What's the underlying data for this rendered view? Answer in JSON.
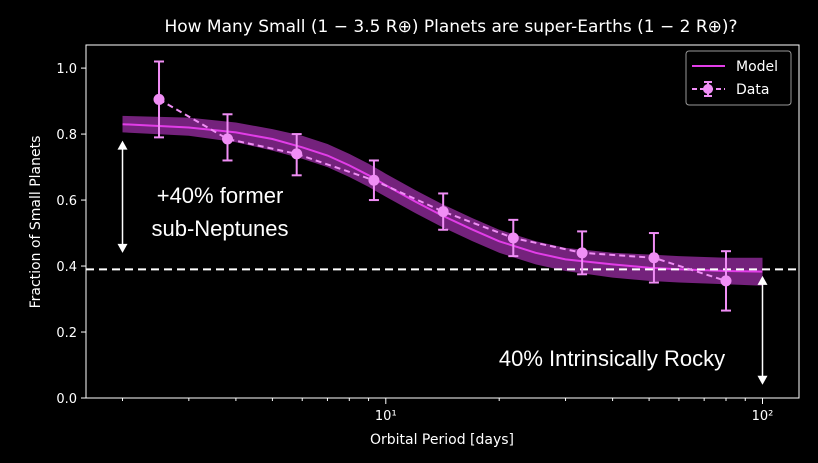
{
  "chart_data": {
    "type": "line",
    "title": "How Many Small (1 − 3.5 R⊕) Planets are super-Earths (1 − 2 R⊕)?",
    "xlabel": "Orbital Period [days]",
    "ylabel": "Fraction of Small Planets",
    "x_scale": "log",
    "xlim": [
      1.6,
      125
    ],
    "ylim": [
      0.0,
      1.07
    ],
    "x_ticks": [
      {
        "value": 10,
        "label": "10¹"
      },
      {
        "value": 100,
        "label": "10²"
      }
    ],
    "y_ticks": [
      {
        "value": 0.0,
        "label": "0.0"
      },
      {
        "value": 0.2,
        "label": "0.2"
      },
      {
        "value": 0.4,
        "label": "0.4"
      },
      {
        "value": 0.6,
        "label": "0.6"
      },
      {
        "value": 0.8,
        "label": "0.8"
      },
      {
        "value": 1.0,
        "label": "1.0"
      }
    ],
    "legend_position": "top-right",
    "series": [
      {
        "name": "Model",
        "kind": "line",
        "color": "#e23de8",
        "band_color": "#7a2483",
        "x": [
          2.0,
          3.0,
          4.0,
          5.0,
          6.0,
          7.0,
          8.0,
          9.0,
          10.0,
          12.0,
          14.0,
          17.0,
          20.0,
          25.0,
          30.0,
          40.0,
          50.0,
          60.0,
          80.0,
          100.0
        ],
        "y": [
          0.83,
          0.82,
          0.805,
          0.785,
          0.76,
          0.735,
          0.705,
          0.675,
          0.645,
          0.595,
          0.555,
          0.51,
          0.475,
          0.44,
          0.42,
          0.405,
          0.395,
          0.39,
          0.385,
          0.383
        ],
        "band_lower": [
          0.805,
          0.795,
          0.775,
          0.75,
          0.725,
          0.7,
          0.67,
          0.64,
          0.61,
          0.56,
          0.52,
          0.475,
          0.44,
          0.405,
          0.385,
          0.365,
          0.355,
          0.35,
          0.345,
          0.34
        ],
        "band_upper": [
          0.855,
          0.85,
          0.835,
          0.815,
          0.795,
          0.77,
          0.74,
          0.71,
          0.68,
          0.63,
          0.59,
          0.545,
          0.51,
          0.475,
          0.455,
          0.44,
          0.435,
          0.43,
          0.425,
          0.425
        ]
      },
      {
        "name": "Data",
        "kind": "errorbar",
        "color": "#f08ef5",
        "x": [
          2.5,
          3.8,
          5.8,
          9.3,
          14.2,
          21.8,
          33.2,
          51.5,
          80.0
        ],
        "y": [
          0.905,
          0.785,
          0.74,
          0.66,
          0.565,
          0.485,
          0.44,
          0.425,
          0.355
        ],
        "err_lower": [
          0.115,
          0.065,
          0.065,
          0.06,
          0.055,
          0.055,
          0.065,
          0.075,
          0.09
        ],
        "err_upper": [
          0.115,
          0.075,
          0.06,
          0.06,
          0.055,
          0.055,
          0.065,
          0.075,
          0.09
        ]
      }
    ],
    "reference_line": {
      "y": 0.39,
      "style": "dashed",
      "color": "#ffffff"
    },
    "annotations": [
      {
        "text_lines": [
          "+40% former",
          "sub-Neptunes"
        ],
        "x": 4.0,
        "y": 0.65
      },
      {
        "text_lines": [
          "40% Intrinsically Rocky"
        ],
        "x": 30.0,
        "y": 0.1
      }
    ],
    "arrows": [
      {
        "x": 2.0,
        "y_from": 0.78,
        "y_to": 0.44,
        "double": true
      },
      {
        "x": 100.0,
        "y_from": 0.37,
        "y_to": 0.04,
        "double": true
      }
    ]
  }
}
